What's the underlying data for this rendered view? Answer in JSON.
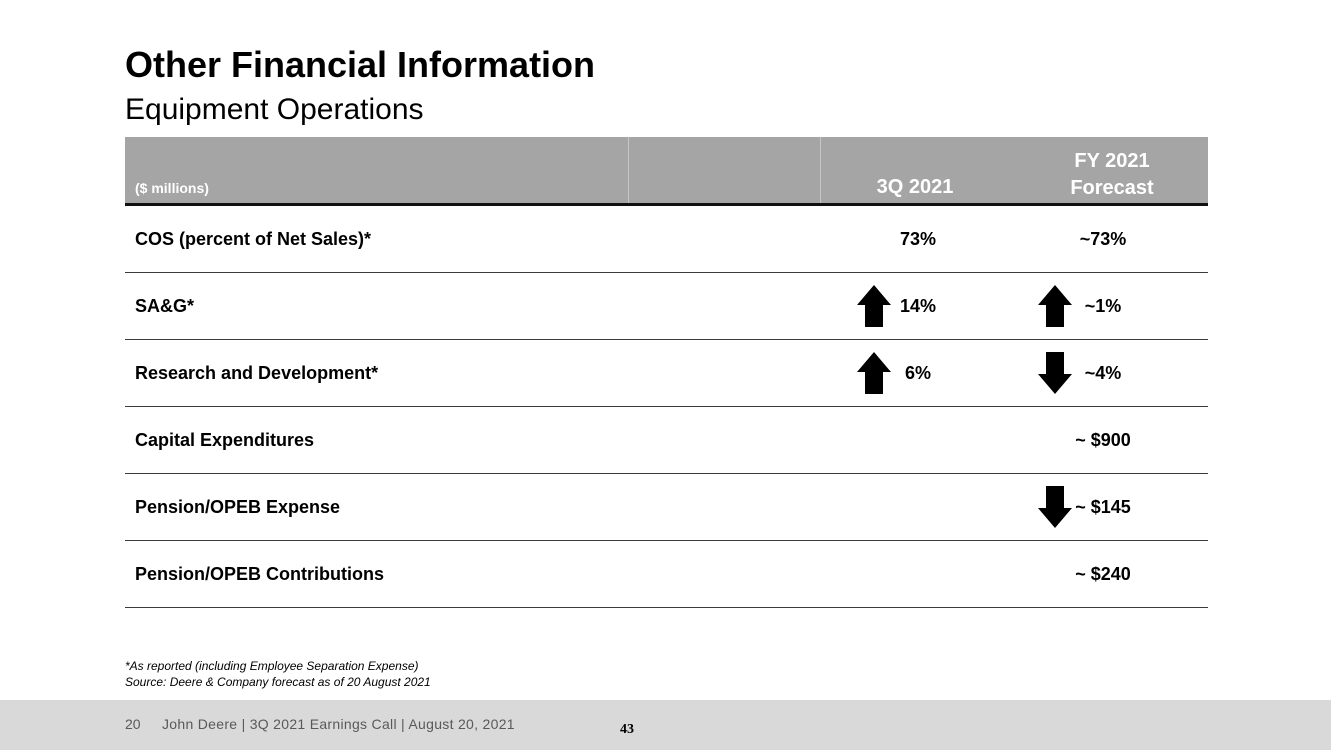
{
  "slide": {
    "title": "Other Financial Information",
    "subtitle": "Equipment Operations"
  },
  "table": {
    "units_label": "($ millions)",
    "col_q": "3Q 2021",
    "col_fy_line1": "FY 2021",
    "col_fy_line2": "Forecast",
    "rows": [
      {
        "label": "COS (percent of Net Sales)*",
        "q": "73%",
        "q_arrow": "none",
        "fy": "~73%",
        "fy_arrow": "none"
      },
      {
        "label": "SA&G*",
        "q": "14%",
        "q_arrow": "up",
        "fy": "~1%",
        "fy_arrow": "up"
      },
      {
        "label": "Research and Development*",
        "q": "6%",
        "q_arrow": "up",
        "fy": "~4%",
        "fy_arrow": "down"
      },
      {
        "label": "Capital Expenditures",
        "q": "",
        "q_arrow": "none",
        "fy": "~ $900",
        "fy_arrow": "none"
      },
      {
        "label": "Pension/OPEB Expense",
        "q": "",
        "q_arrow": "none",
        "fy": "~ $145",
        "fy_arrow": "down"
      },
      {
        "label": "Pension/OPEB Contributions",
        "q": "",
        "q_arrow": "none",
        "fy": "~ $240",
        "fy_arrow": "none"
      }
    ]
  },
  "footnotes": {
    "line1": "*As reported (including Employee Separation Expense)",
    "line2": "Source: Deere & Company forecast as of 20 August 2021"
  },
  "footer": {
    "page": "20",
    "text": "John Deere | 3Q 2021 Earnings Call | August 20, 2021",
    "slide_number": "43"
  },
  "colors": {
    "header_bg": "#a5a5a5",
    "footer_bg": "#d9d9d9",
    "arrow": "#000000"
  }
}
